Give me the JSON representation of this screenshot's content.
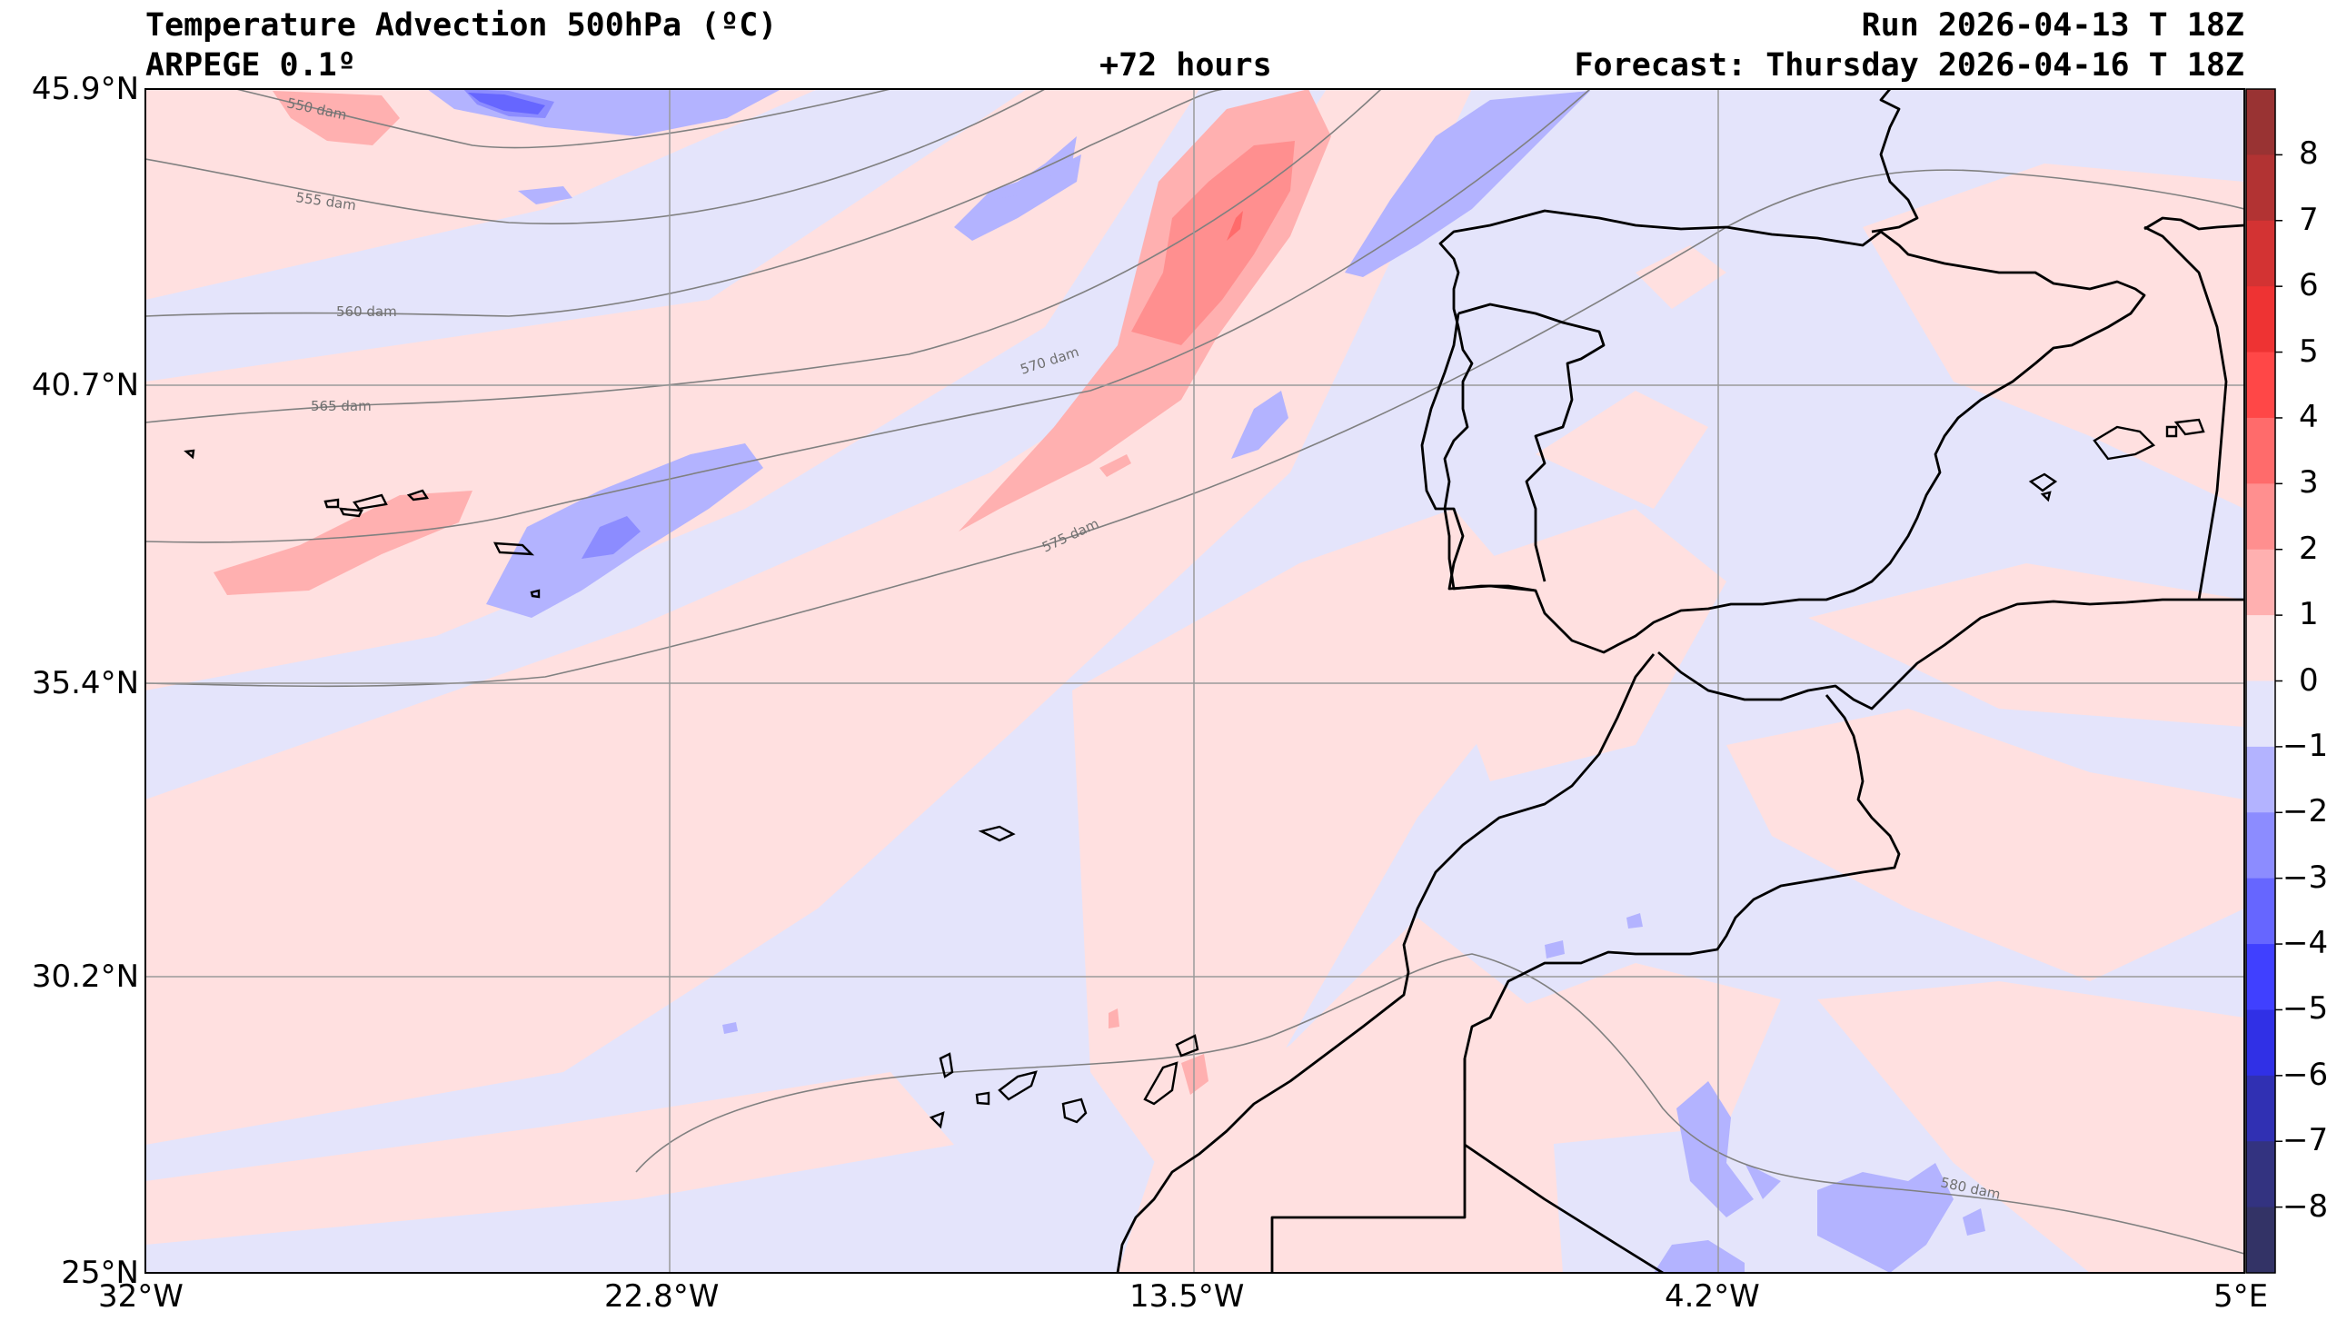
{
  "header": {
    "title": "Temperature Advection  500hPa (ºC)",
    "model": "ARPEGE 0.1º",
    "lead": "+72 hours",
    "run": "Run 2026-04-13 T 18Z",
    "forecast": "Forecast: Thursday 2026-04-16 T 18Z"
  },
  "axes": {
    "lat_labels": [
      "45.9°N",
      "40.7°N",
      "35.4°N",
      "30.2°N",
      "25°N"
    ],
    "lon_labels": [
      "32°W",
      "22.8°W",
      "13.5°W",
      "4.2°W",
      "5°E"
    ]
  },
  "contours": {
    "labels": [
      "550 dam",
      "555 dam",
      "560 dam",
      "565 dam",
      "570 dam",
      "575 dam",
      "580 dam"
    ]
  },
  "colorbar": {
    "levels": [
      8,
      7,
      6,
      5,
      4,
      3,
      2,
      1,
      0,
      -1,
      -2,
      -3,
      -4,
      -5,
      -6,
      -7,
      -8
    ],
    "label_text": [
      "8",
      "7",
      "6",
      "5",
      "4",
      "3",
      "2",
      "1",
      "0",
      "−1",
      "−2",
      "−3",
      "−4",
      "−5",
      "−6",
      "−7",
      "−8"
    ],
    "colors_warm_to_cold": [
      "#993333",
      "#b23333",
      "#d33333",
      "#ee3333",
      "#ff4747",
      "#ff6b6b",
      "#ff8f8f",
      "#ffb0b0",
      "#ffe0e0",
      "#e4e4fb",
      "#b3b3ff",
      "#8c8cff",
      "#6666ff",
      "#4040ff",
      "#3030e6",
      "#3030b3",
      "#333380",
      "#333366"
    ]
  },
  "colors": {
    "warm_weak": "#ffe0e0",
    "cold_weak": "#e4e4fb",
    "coast": "#000000",
    "grid": "#9a9a9a",
    "contour": "#808080"
  }
}
